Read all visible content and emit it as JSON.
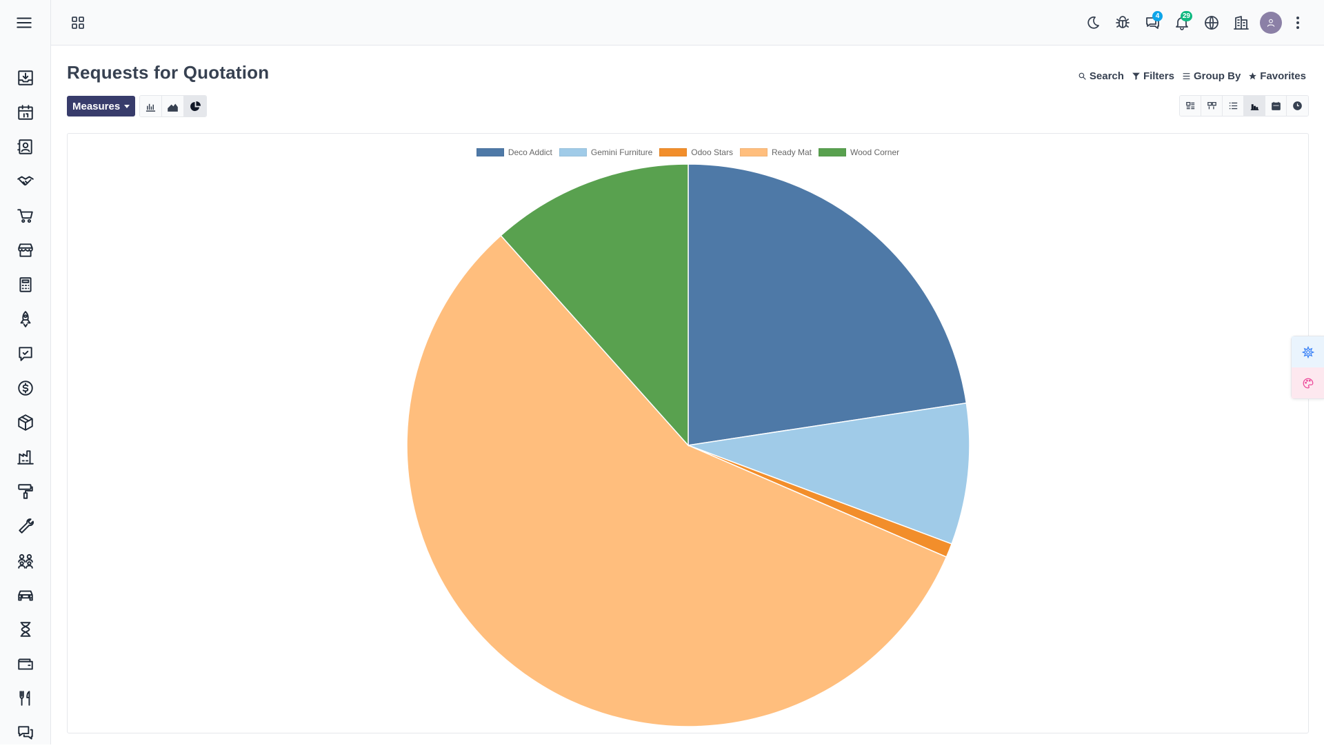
{
  "sidebar": {
    "apps": [
      "inbox-download",
      "calendar",
      "contacts",
      "crm-handshake",
      "sales-cart",
      "point-of-sale",
      "invoicing-calculator",
      "project-rocket",
      "timesheet-check",
      "accounting-dollar",
      "inventory-box",
      "manufacturing-factory",
      "paint-roller",
      "repair-wrench",
      "employees-group",
      "fleet-car",
      "time-off-hourglass",
      "expenses-wallet",
      "restaurant-utensils",
      "discuss-chat"
    ]
  },
  "topbar": {
    "discuss_badge": "4",
    "notifications_badge": "29"
  },
  "page": {
    "title": "Requests for Quotation"
  },
  "search_panel": {
    "search": "Search",
    "filters": "Filters",
    "group_by": "Group By",
    "favorites": "Favorites"
  },
  "toolbar": {
    "measures_label": "Measures",
    "active_chart_type": "pie"
  },
  "views": {
    "active": "graph",
    "items": [
      "kanban",
      "pivot-grid",
      "list",
      "graph",
      "calendar",
      "activity"
    ]
  },
  "chart_data": {
    "type": "pie",
    "title": "",
    "categories": [
      "Deco Addict",
      "Gemini Furniture",
      "Odoo Stars",
      "Ready Mat",
      "Wood Corner"
    ],
    "values": [
      22.6,
      8.1,
      0.8,
      56.9,
      11.6
    ],
    "colors": [
      "#4e79a7",
      "#a0cbe8",
      "#f28e2b",
      "#ffbe7d",
      "#59a14f"
    ],
    "legend_position": "top-center"
  }
}
